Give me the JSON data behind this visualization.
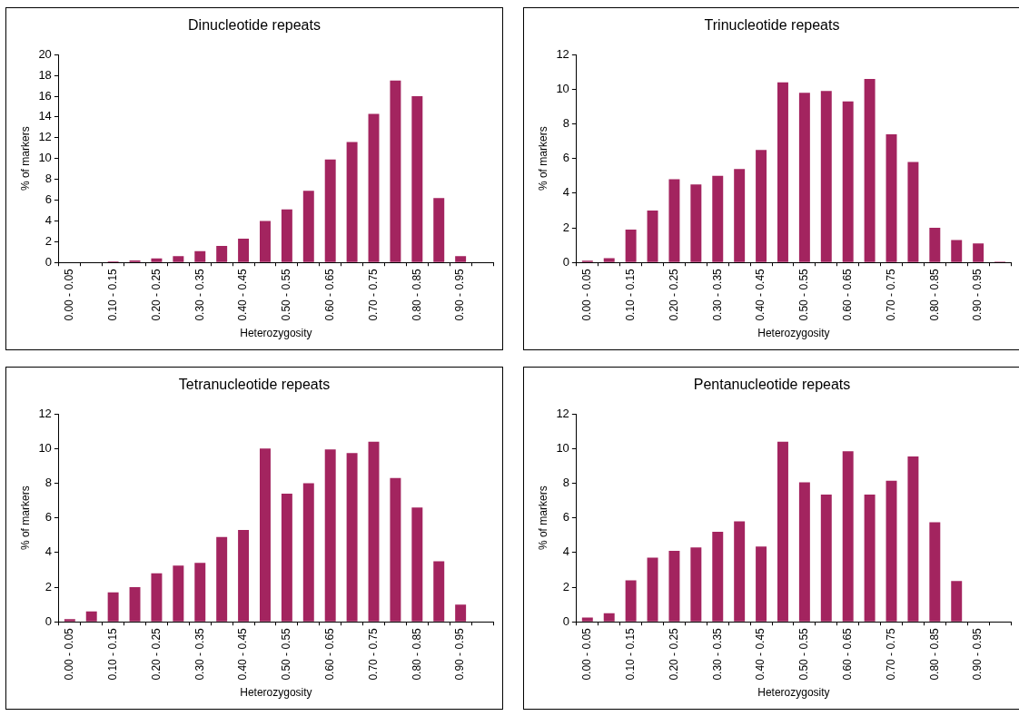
{
  "chart_data": [
    {
      "type": "bar",
      "title": "Dinucleotide repeats",
      "xlabel": "Heterozygosity",
      "ylabel": "% of markers",
      "categories": [
        "0.00 - 0.05",
        null,
        "0.10 - 0.15",
        null,
        "0.20 - 0.25",
        null,
        "0.30 - 0.35",
        null,
        "0.40 - 0.45",
        null,
        "0.50 - 0.55",
        null,
        "0.60 - 0.65",
        null,
        "0.70 - 0.75",
        null,
        "0.80 - 0.85",
        null,
        "0.90 - 0.95",
        null
      ],
      "color": "#a3245f",
      "values": [
        0,
        0,
        0.1,
        0.2,
        0.4,
        0.6,
        1.1,
        1.6,
        2.3,
        4.0,
        5.1,
        6.9,
        9.9,
        11.6,
        14.3,
        17.5,
        16.0,
        6.2,
        0.6,
        0
      ],
      "ylim": [
        0,
        20
      ],
      "yticks": [
        0,
        2,
        4,
        6,
        8,
        10,
        12,
        14,
        16,
        18,
        20
      ],
      "grid": false,
      "legend": false
    },
    {
      "type": "bar",
      "title": "Trinucleotide repeats",
      "xlabel": "Heterozygosity",
      "ylabel": "% of markers",
      "categories": [
        "0.00 - 0.05",
        null,
        "0.10 - 0.15",
        null,
        "0.20 - 0.25",
        null,
        "0.30 - 0.35",
        null,
        "0.40 - 0.45",
        null,
        "0.50 - 0.55",
        null,
        "0.60 - 0.65",
        null,
        "0.70 - 0.75",
        null,
        "0.80 - 0.85",
        null,
        "0.90 - 0.95",
        null
      ],
      "color": "#a3245f",
      "values": [
        0.1,
        0.25,
        1.9,
        3.0,
        4.8,
        4.5,
        5.0,
        5.4,
        6.5,
        10.4,
        9.8,
        9.9,
        9.3,
        10.6,
        7.4,
        5.8,
        2.0,
        1.3,
        1.1,
        0.05
      ],
      "ylim": [
        0,
        12
      ],
      "yticks": [
        0,
        2,
        4,
        6,
        8,
        10,
        12
      ],
      "grid": false,
      "legend": false
    },
    {
      "type": "bar",
      "title": "Tetranucleotide repeats",
      "xlabel": "Heterozygosity",
      "ylabel": "% of markers",
      "categories": [
        "0.00 - 0.05",
        null,
        "0.10 - 0.15",
        null,
        "0.20 - 0.25",
        null,
        "0.30 - 0.35",
        null,
        "0.40 - 0.45",
        null,
        "0.50 - 0.55",
        null,
        "0.60 - 0.65",
        null,
        "0.70 - 0.75",
        null,
        "0.80 - 0.85",
        null,
        "0.90 - 0.95",
        null
      ],
      "color": "#a3245f",
      "values": [
        0.15,
        0.6,
        1.7,
        2.0,
        2.8,
        3.25,
        3.4,
        4.9,
        5.3,
        10.0,
        7.4,
        8.0,
        9.95,
        9.75,
        10.4,
        8.3,
        6.6,
        3.5,
        1.0,
        0
      ],
      "ylim": [
        0,
        12
      ],
      "yticks": [
        0,
        2,
        4,
        6,
        8,
        10,
        12
      ],
      "grid": false,
      "legend": false
    },
    {
      "type": "bar",
      "title": "Pentanucleotide repeats",
      "xlabel": "Heterozygosity",
      "ylabel": "% of markers",
      "categories": [
        "0.00 - 0.05",
        null,
        "0.10 - 0.15",
        null,
        "0.20 - 0.25",
        null,
        "0.30 - 0.35",
        null,
        "0.40 - 0.45",
        null,
        "0.50 - 0.55",
        null,
        "0.60 - 0.65",
        null,
        "0.70 - 0.75",
        null,
        "0.80 - 0.85",
        null,
        "0.90 - 0.95",
        null
      ],
      "color": "#a3245f",
      "values": [
        0.25,
        0.5,
        2.4,
        3.7,
        4.1,
        4.3,
        5.2,
        5.8,
        4.35,
        10.4,
        8.05,
        7.35,
        9.85,
        7.35,
        8.15,
        9.55,
        5.75,
        2.35,
        0,
        0
      ],
      "ylim": [
        0,
        12
      ],
      "yticks": [
        0,
        2,
        4,
        6,
        8,
        10,
        12
      ],
      "grid": false,
      "legend": false
    }
  ]
}
